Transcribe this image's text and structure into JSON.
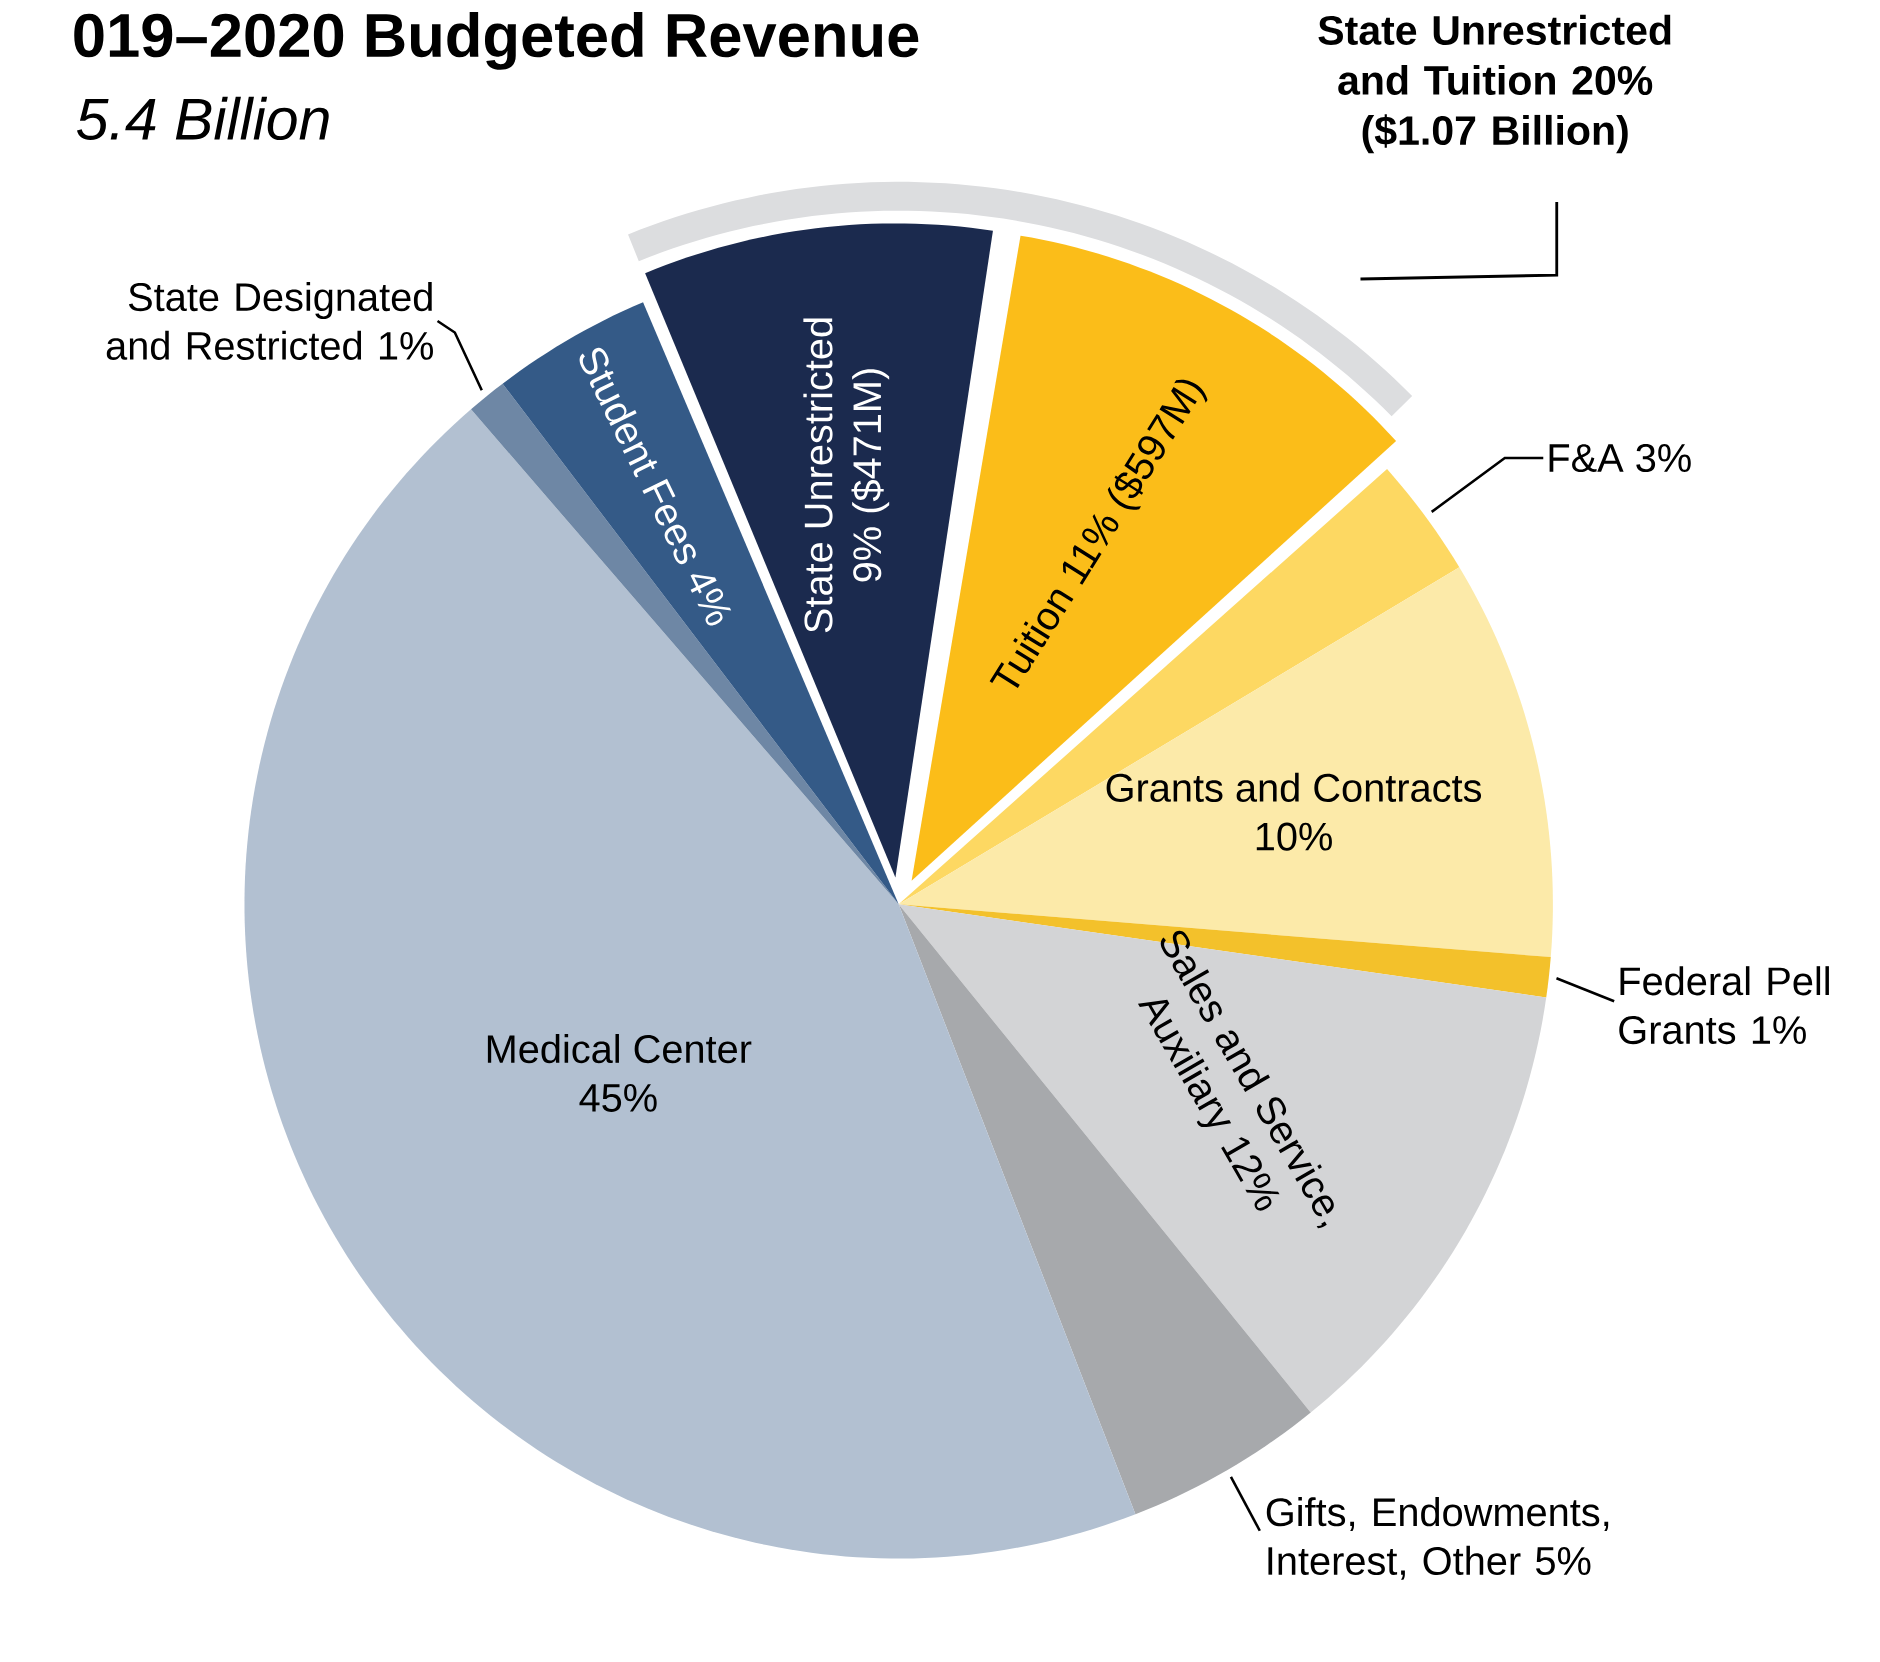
{
  "chart_data": {
    "type": "pie",
    "title": "019–2020 Budgeted Revenue",
    "subtitle": "5.4 Billion",
    "categories": [
      "State Unrestricted",
      "Tuition",
      "F&A",
      "Grants and Contracts",
      "Federal Pell Grants",
      "Sales and Service, Auxiliary",
      "Gifts, Endowments, Interest, Other",
      "Medical Center",
      "State Designated and Restricted",
      "Student Fees"
    ],
    "values": [
      9,
      11,
      3,
      10,
      1,
      12,
      5,
      45,
      1,
      4
    ],
    "value_labels": [
      "9% ($471M)",
      "11% ($597M)",
      "3%",
      "10%",
      "1%",
      "12%",
      "5%",
      "45%",
      "1%",
      "4%"
    ],
    "colors": [
      "#1b2a4e",
      "#fbbd19",
      "#fdd862",
      "#fceaa9",
      "#f3c12b",
      "#d3d4d6",
      "#a7a9ac",
      "#b2c0d1",
      "#6e87a5",
      "#345a87"
    ],
    "annotations": [
      "State Unrestricted and Tuition 20% ($1.07 Billion)"
    ]
  }
}
